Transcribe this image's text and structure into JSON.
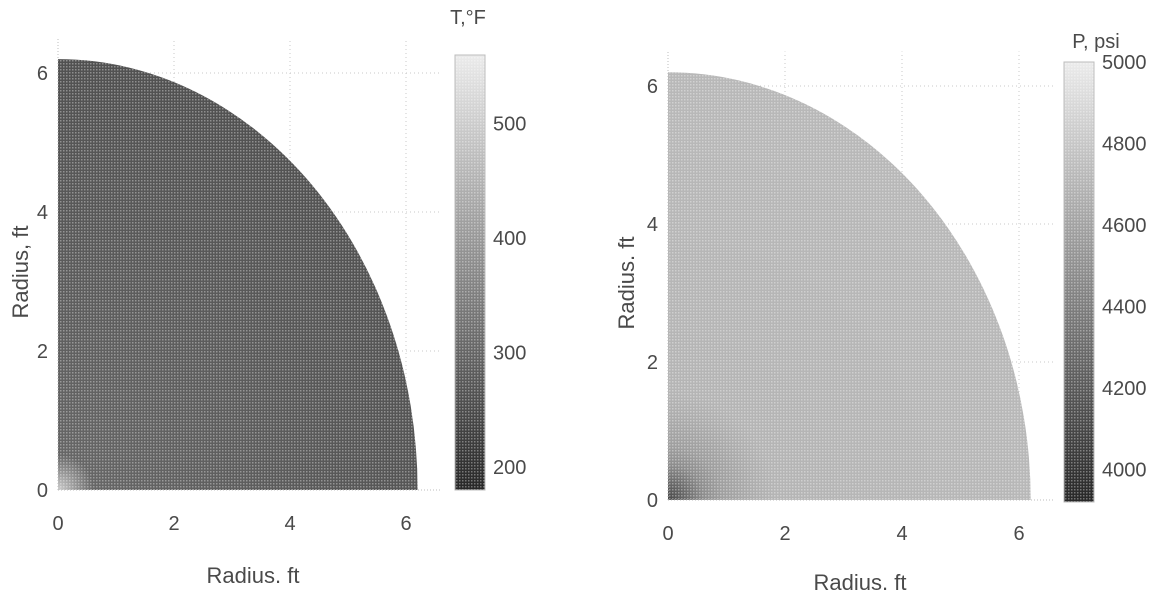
{
  "chart_data": [
    {
      "type": "heatmap",
      "shape": "quarter-disk",
      "xlabel": "Radius. ft",
      "ylabel": "Radius, ft",
      "xlim": [
        0,
        6.6
      ],
      "ylim": [
        0,
        6.5
      ],
      "x_ticks": [
        0,
        2,
        4,
        6
      ],
      "y_ticks": [
        0,
        2,
        4,
        6
      ],
      "grid": true,
      "domain_radius": 6.2,
      "colorbar": {
        "title": "T,°F",
        "range": [
          180,
          560
        ],
        "ticks": [
          200,
          300,
          400,
          500
        ],
        "colormap": "grayscale"
      },
      "field": {
        "description": "value vs radius from origin",
        "r": [
          0,
          0.5,
          6.2
        ],
        "values": [
          500,
          300,
          260
        ]
      }
    },
    {
      "type": "heatmap",
      "shape": "quarter-disk",
      "xlabel": "Radius. ft",
      "ylabel": "Radius. ft",
      "xlim": [
        0,
        6.6
      ],
      "ylim": [
        0,
        6.5
      ],
      "x_ticks": [
        0,
        2,
        4,
        6
      ],
      "y_ticks": [
        0,
        2,
        4,
        6
      ],
      "grid": true,
      "domain_radius": 6.2,
      "colorbar": {
        "title": "P, psi",
        "range": [
          3920,
          5000
        ],
        "ticks": [
          4000,
          4200,
          4400,
          4600,
          4800,
          5000
        ],
        "colormap": "grayscale"
      },
      "field": {
        "description": "value vs radius from origin",
        "r": [
          0,
          0.6,
          1.5,
          6.2
        ],
        "values": [
          4100,
          4550,
          4700,
          4720
        ]
      }
    }
  ]
}
